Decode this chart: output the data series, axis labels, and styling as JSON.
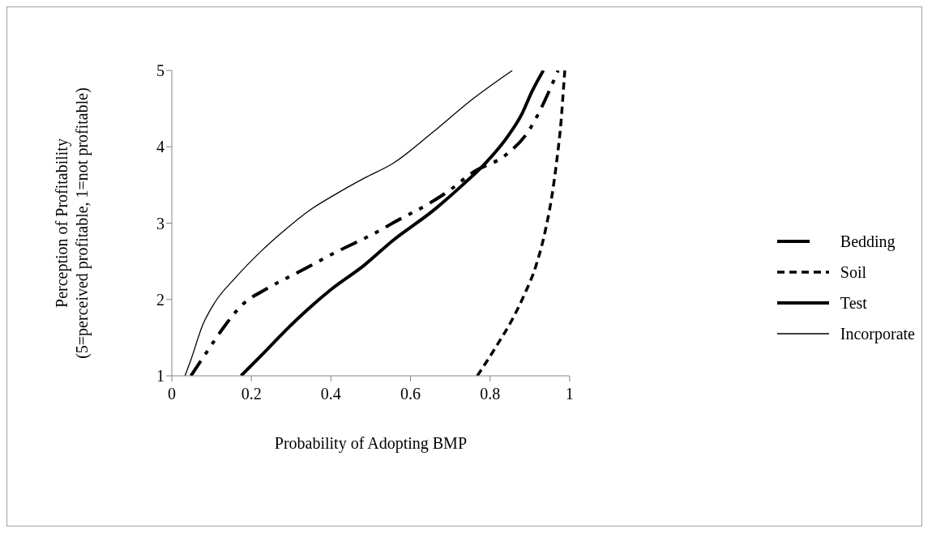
{
  "chart_data": {
    "type": "line",
    "xlabel": "Probability of Adopting BMP",
    "ylabel": "Perception of Profitability\n(5=perceived profitable, 1=not profitable)",
    "xlim": [
      0,
      1
    ],
    "xticks": [
      0,
      0.2,
      0.4,
      0.6,
      0.8,
      1
    ],
    "ylim": [
      1,
      5
    ],
    "yticks": [
      1,
      2,
      3,
      4,
      5
    ],
    "grid": false,
    "legend": "right",
    "marker": "none",
    "series": [
      {
        "name": "Bedding",
        "color": "#000000",
        "line_style": "dashed",
        "x": [
          0.048,
          0.089,
          0.131,
          0.179,
          0.235,
          0.319,
          0.409,
          0.525,
          0.555,
          0.641,
          0.701,
          0.755,
          0.841,
          0.896,
          0.928,
          0.946,
          0.971
        ],
        "values": [
          1.0,
          1.32,
          1.64,
          1.94,
          2.13,
          2.36,
          2.61,
          2.91,
          3.0,
          3.24,
          3.44,
          3.66,
          3.9,
          4.2,
          4.5,
          4.7,
          5.0
        ]
      },
      {
        "name": "Soil",
        "color": "#000000",
        "line_style": "dotted",
        "x": [
          0.768,
          0.815,
          0.856,
          0.886,
          0.916,
          0.941,
          0.956,
          0.968,
          0.979,
          0.985,
          0.988
        ],
        "values": [
          1.0,
          1.38,
          1.74,
          2.06,
          2.45,
          2.95,
          3.37,
          3.83,
          4.36,
          4.79,
          5.0
        ]
      },
      {
        "name": "Test",
        "color": "#000000",
        "line_style": "solid",
        "x": [
          0.174,
          0.235,
          0.295,
          0.344,
          0.4,
          0.484,
          0.555,
          0.656,
          0.731,
          0.791,
          0.845,
          0.881,
          0.905,
          0.934
        ],
        "values": [
          1.0,
          1.32,
          1.64,
          1.88,
          2.13,
          2.45,
          2.77,
          3.16,
          3.5,
          3.8,
          4.14,
          4.44,
          4.72,
          5.0
        ]
      },
      {
        "name": "Incorporate",
        "color": "#000000",
        "line_style": "solid",
        "x": [
          0.033,
          0.048,
          0.078,
          0.108,
          0.159,
          0.224,
          0.284,
          0.344,
          0.409,
          0.484,
          0.555,
          0.656,
          0.755,
          0.856
        ],
        "values": [
          1.0,
          1.21,
          1.67,
          1.96,
          2.28,
          2.63,
          2.91,
          3.16,
          3.37,
          3.59,
          3.78,
          4.19,
          4.62,
          5.0
        ]
      }
    ]
  }
}
